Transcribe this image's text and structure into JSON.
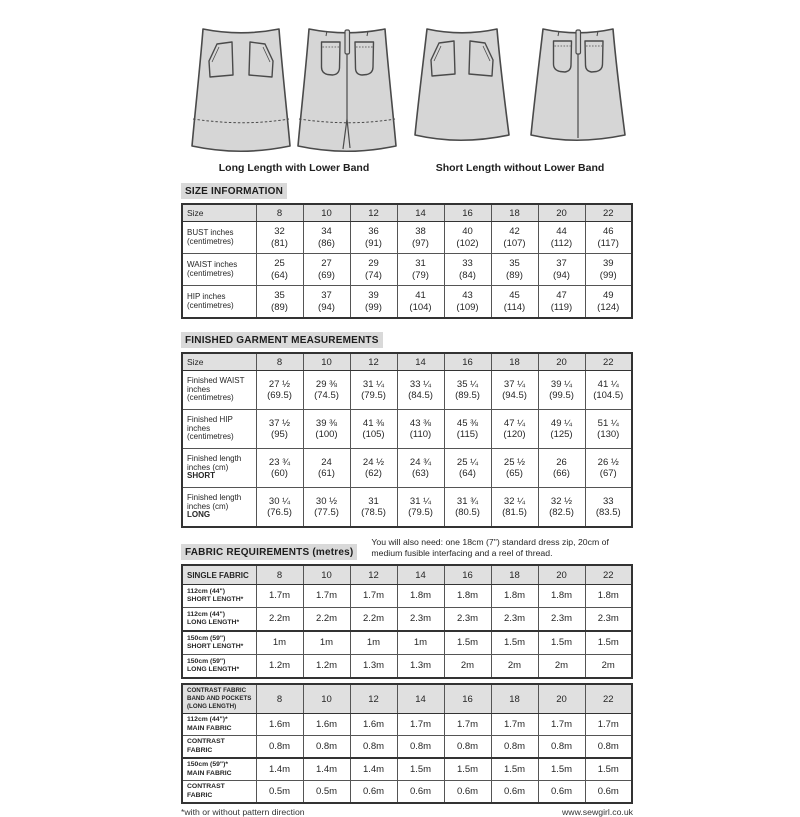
{
  "illustrations": {
    "caption_long": "Long Length with Lower Band",
    "caption_short": "Short Length without Lower Band"
  },
  "sections": {
    "size_information_title": "SIZE INFORMATION",
    "finished_title": "FINISHED GARMENT MEASUREMENTS",
    "fabric_title": "FABRIC REQUIREMENTS (metres)",
    "fabric_note": "You will also need: one 18cm (7\") standard dress zip, 20cm of medium fusible interfacing and a reel of thread."
  },
  "colors": {
    "garment_fill": "#d6d6d6",
    "line": "#4a4a4a",
    "header_row_bg": "#e0e0e0",
    "title_bg": "#d9d9d9"
  },
  "tables": {
    "size_information": {
      "corner": [
        "Size"
      ],
      "sizes": [
        "8",
        "10",
        "12",
        "14",
        "16",
        "18",
        "20",
        "22"
      ],
      "rows": [
        {
          "label": [
            "BUST inches",
            "(centimetres)"
          ],
          "cells": [
            [
              "32",
              "(81)"
            ],
            [
              "34",
              "(86)"
            ],
            [
              "36",
              "(91)"
            ],
            [
              "38",
              "(97)"
            ],
            [
              "40",
              "(102)"
            ],
            [
              "42",
              "(107)"
            ],
            [
              "44",
              "(112)"
            ],
            [
              "46",
              "(117)"
            ]
          ]
        },
        {
          "label": [
            "WAIST inches",
            "(centimetres)"
          ],
          "cells": [
            [
              "25",
              "(64)"
            ],
            [
              "27",
              "(69)"
            ],
            [
              "29",
              "(74)"
            ],
            [
              "31",
              "(79)"
            ],
            [
              "33",
              "(84)"
            ],
            [
              "35",
              "(89)"
            ],
            [
              "37",
              "(94)"
            ],
            [
              "39",
              "(99)"
            ]
          ]
        },
        {
          "label": [
            "HIP inches",
            "(centimetres)"
          ],
          "cells": [
            [
              "35",
              "(89)"
            ],
            [
              "37",
              "(94)"
            ],
            [
              "39",
              "(99)"
            ],
            [
              "41",
              "(104)"
            ],
            [
              "43",
              "(109)"
            ],
            [
              "45",
              "(114)"
            ],
            [
              "47",
              "(119)"
            ],
            [
              "49",
              "(124)"
            ]
          ]
        }
      ]
    },
    "finished_garment": {
      "corner": [
        "Size"
      ],
      "sizes": [
        "8",
        "10",
        "12",
        "14",
        "16",
        "18",
        "20",
        "22"
      ],
      "rows": [
        {
          "label": [
            "Finished WAIST",
            "inches",
            "(centimetres)"
          ],
          "cells": [
            [
              "27 ½",
              "(69.5)"
            ],
            [
              "29 ⅜",
              "(74.5)"
            ],
            [
              "31 ¼",
              "(79.5)"
            ],
            [
              "33 ¼",
              "(84.5)"
            ],
            [
              "35 ¼",
              "(89.5)"
            ],
            [
              "37 ¼",
              "(94.5)"
            ],
            [
              "39 ¼",
              "(99.5)"
            ],
            [
              "41 ¼",
              "(104.5)"
            ]
          ]
        },
        {
          "label": [
            "Finished HIP",
            "inches",
            "(centimetres)"
          ],
          "cells": [
            [
              "37 ½",
              "(95)"
            ],
            [
              "39 ⅜",
              "(100)"
            ],
            [
              "41 ⅜",
              "(105)"
            ],
            [
              "43 ⅜",
              "(110)"
            ],
            [
              "45 ⅜",
              "(115)"
            ],
            [
              "47 ¼",
              "(120)"
            ],
            [
              "49 ¼",
              "(125)"
            ],
            [
              "51 ¼",
              "(130)"
            ]
          ]
        },
        {
          "label": [
            "Finished length",
            "inches (cm)",
            "**SHORT**"
          ],
          "cells": [
            [
              "23 ¾",
              "(60)"
            ],
            [
              "24",
              "(61)"
            ],
            [
              "24 ½",
              "(62)"
            ],
            [
              "24 ¾",
              "(63)"
            ],
            [
              "25 ¼",
              "(64)"
            ],
            [
              "25 ½",
              "(65)"
            ],
            [
              "26",
              "(66)"
            ],
            [
              "26 ½",
              "(67)"
            ]
          ]
        },
        {
          "label": [
            "Finished length",
            "inches (cm)",
            "**LONG**"
          ],
          "cells": [
            [
              "30 ¼",
              "(76.5)"
            ],
            [
              "30 ½",
              "(77.5)"
            ],
            [
              "31",
              "(78.5)"
            ],
            [
              "31 ¼",
              "(79.5)"
            ],
            [
              "31 ¾",
              "(80.5)"
            ],
            [
              "32 ¼",
              "(81.5)"
            ],
            [
              "32 ½",
              "(82.5)"
            ],
            [
              "33",
              "(83.5)"
            ]
          ]
        }
      ]
    },
    "single_fabric": {
      "corner": [
        "SINGLE FABRIC"
      ],
      "sizes": [
        "8",
        "10",
        "12",
        "14",
        "16",
        "18",
        "20",
        "22"
      ],
      "rows": [
        {
          "label": [
            "112cm (44\")",
            "SHORT LENGTH*"
          ],
          "cells": [
            [
              "1.7m"
            ],
            [
              "1.7m"
            ],
            [
              "1.7m"
            ],
            [
              "1.8m"
            ],
            [
              "1.8m"
            ],
            [
              "1.8m"
            ],
            [
              "1.8m"
            ],
            [
              "1.8m"
            ]
          ]
        },
        {
          "label": [
            "112cm (44\")",
            "LONG LENGTH*"
          ],
          "cells": [
            [
              "2.2m"
            ],
            [
              "2.2m"
            ],
            [
              "2.2m"
            ],
            [
              "2.3m"
            ],
            [
              "2.3m"
            ],
            [
              "2.3m"
            ],
            [
              "2.3m"
            ],
            [
              "2.3m"
            ]
          ]
        },
        {
          "label": [
            "150cm (59\")",
            "SHORT LENGTH*"
          ],
          "thick_top": true,
          "cells": [
            [
              "1m"
            ],
            [
              "1m"
            ],
            [
              "1m"
            ],
            [
              "1m"
            ],
            [
              "1.5m"
            ],
            [
              "1.5m"
            ],
            [
              "1.5m"
            ],
            [
              "1.5m"
            ]
          ]
        },
        {
          "label": [
            "150cm (59\")",
            "LONG LENGTH*"
          ],
          "cells": [
            [
              "1.2m"
            ],
            [
              "1.2m"
            ],
            [
              "1.3m"
            ],
            [
              "1.3m"
            ],
            [
              "2m"
            ],
            [
              "2m"
            ],
            [
              "2m"
            ],
            [
              "2m"
            ]
          ]
        }
      ]
    },
    "contrast_fabric": {
      "corner": [
        "CONTRAST FABRIC",
        "BAND AND POCKETS",
        "(LONG LENGTH)"
      ],
      "sizes": [
        "8",
        "10",
        "12",
        "14",
        "16",
        "18",
        "20",
        "22"
      ],
      "rows": [
        {
          "label": [
            "112cm (44\")*",
            "MAIN FABRIC"
          ],
          "cells": [
            [
              "1.6m"
            ],
            [
              "1.6m"
            ],
            [
              "1.6m"
            ],
            [
              "1.7m"
            ],
            [
              "1.7m"
            ],
            [
              "1.7m"
            ],
            [
              "1.7m"
            ],
            [
              "1.7m"
            ]
          ]
        },
        {
          "label": [
            "CONTRAST",
            "FABRIC"
          ],
          "cells": [
            [
              "0.8m"
            ],
            [
              "0.8m"
            ],
            [
              "0.8m"
            ],
            [
              "0.8m"
            ],
            [
              "0.8m"
            ],
            [
              "0.8m"
            ],
            [
              "0.8m"
            ],
            [
              "0.8m"
            ]
          ]
        },
        {
          "label": [
            "150cm (59\")*",
            "MAIN FABRIC"
          ],
          "thick_top": true,
          "cells": [
            [
              "1.4m"
            ],
            [
              "1.4m"
            ],
            [
              "1.4m"
            ],
            [
              "1.5m"
            ],
            [
              "1.5m"
            ],
            [
              "1.5m"
            ],
            [
              "1.5m"
            ],
            [
              "1.5m"
            ]
          ]
        },
        {
          "label": [
            "CONTRAST",
            "FABRIC"
          ],
          "cells": [
            [
              "0.5m"
            ],
            [
              "0.5m"
            ],
            [
              "0.6m"
            ],
            [
              "0.6m"
            ],
            [
              "0.6m"
            ],
            [
              "0.6m"
            ],
            [
              "0.6m"
            ],
            [
              "0.6m"
            ]
          ]
        }
      ]
    }
  },
  "footer": {
    "footnote": "*with or without pattern direction",
    "website": "www.sewgirl.co.uk"
  }
}
